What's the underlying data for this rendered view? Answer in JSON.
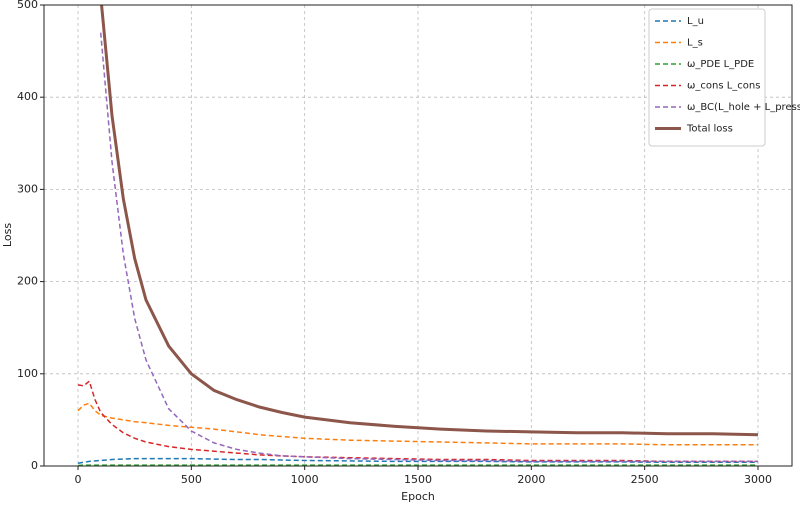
{
  "chart_data": {
    "type": "line",
    "x_label": "Epoch",
    "y_label": "Loss",
    "x": [
      0,
      25,
      50,
      75,
      100,
      150,
      200,
      250,
      300,
      400,
      500,
      600,
      700,
      800,
      900,
      1000,
      1200,
      1400,
      1600,
      1800,
      2000,
      2200,
      2400,
      2600,
      2800,
      3000
    ],
    "series": [
      {
        "name": "L_u",
        "color": "#1f77b4",
        "linestyle": "dashed",
        "values": [
          3,
          4,
          5,
          5.5,
          6,
          7,
          7.5,
          8,
          8,
          8,
          8,
          7.5,
          7,
          7,
          6.5,
          6,
          5.5,
          5,
          5,
          5,
          4.5,
          4.5,
          4.5,
          4,
          4,
          4
        ]
      },
      {
        "name": "L_s",
        "color": "#ff7f0e",
        "linestyle": "dashed",
        "values": [
          60,
          66,
          68,
          60,
          55,
          52,
          50,
          48,
          47,
          44,
          42,
          40,
          37,
          34,
          32,
          30,
          28,
          27,
          26,
          25,
          24,
          24,
          24,
          23,
          23,
          23
        ]
      },
      {
        "name": "ω_PDE L_PDE",
        "color": "#2ca02c",
        "linestyle": "dashed",
        "values": [
          0.5,
          1,
          1,
          1,
          1,
          1,
          1,
          1,
          1,
          1,
          1,
          1,
          1,
          1,
          1,
          1,
          1,
          1,
          1,
          1,
          1,
          1,
          1,
          1,
          1,
          1
        ]
      },
      {
        "name": "ω_cons L_cons",
        "color": "#d62728",
        "linestyle": "dashed",
        "values": [
          88,
          87,
          92,
          72,
          58,
          45,
          36,
          30,
          26,
          21,
          18,
          16,
          14,
          12,
          11,
          10,
          9,
          8,
          7,
          7,
          6,
          6,
          6,
          5,
          5,
          5
        ]
      },
      {
        "name": "ω_BC(L_hole + L_press)",
        "color": "#9467bd",
        "linestyle": "dashed",
        "values": [
          null,
          null,
          null,
          null,
          470,
          330,
          230,
          160,
          115,
          62,
          38,
          25,
          18,
          14,
          11,
          10,
          8,
          7,
          6,
          6,
          5,
          5,
          5,
          5,
          5,
          5
        ]
      },
      {
        "name": "Total loss",
        "color": "#8c564b",
        "linestyle": "solid",
        "values": [
          null,
          null,
          null,
          null,
          510,
          380,
          290,
          225,
          180,
          130,
          100,
          82,
          72,
          64,
          58,
          53,
          47,
          43,
          40,
          38,
          37,
          36,
          36,
          35,
          35,
          34
        ]
      }
    ],
    "xlim": [
      -150,
      3150
    ],
    "ylim": [
      0,
      500
    ],
    "xticks": [
      0,
      500,
      1000,
      1500,
      2000,
      2500,
      3000
    ],
    "yticks": [
      0,
      100,
      200,
      300,
      400,
      500
    ],
    "grid": true,
    "legend": "upper right"
  }
}
